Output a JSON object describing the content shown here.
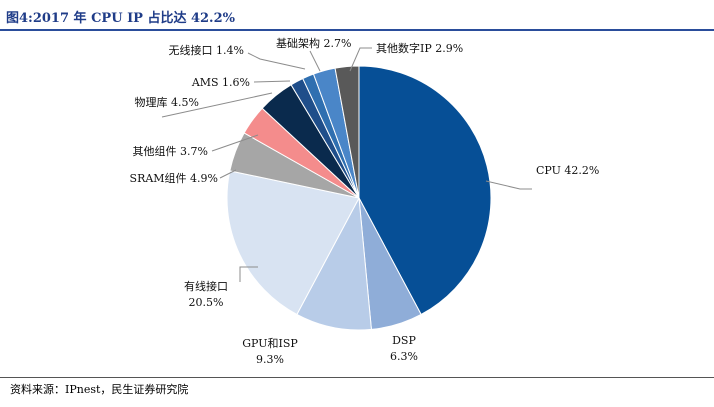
{
  "header": {
    "title": "图4:2017 年 CPU IP 占比达 42.2%"
  },
  "footer": {
    "source": "资料来源：IPnest，民生证券研究院"
  },
  "chart_data": {
    "type": "pie",
    "title": "图4:2017 年 CPU IP 占比达 42.2%",
    "slices": [
      {
        "name": "CPU",
        "value": 42.2,
        "label_lines": [
          "CPU 42.2%"
        ],
        "color": "#064f96"
      },
      {
        "name": "DSP",
        "value": 6.3,
        "label_lines": [
          "DSP",
          "6.3%"
        ],
        "color": "#8fadd8"
      },
      {
        "name": "GPU和ISP",
        "value": 9.3,
        "label_lines": [
          "GPU和ISP",
          "9.3%"
        ],
        "color": "#b8cce8"
      },
      {
        "name": "有线接口",
        "value": 20.5,
        "label_lines": [
          "有线接口",
          "20.5%"
        ],
        "color": "#d8e3f2"
      },
      {
        "name": "SRAM组件",
        "value": 4.9,
        "label_lines": [
          "SRAM组件 4.9%"
        ],
        "color": "#a6a6a6"
      },
      {
        "name": "其他组件",
        "value": 3.7,
        "label_lines": [
          "其他组件 3.7%"
        ],
        "color": "#f48c8c"
      },
      {
        "name": "物理库",
        "value": 4.5,
        "label_lines": [
          "物理库 4.5%"
        ],
        "color": "#0a2a4d"
      },
      {
        "name": "AMS",
        "value": 1.6,
        "label_lines": [
          "AMS 1.6%"
        ],
        "color": "#1f4e8a"
      },
      {
        "name": "无线接口",
        "value": 1.4,
        "label_lines": [
          "无线接口 1.4%"
        ],
        "color": "#2f6fb0"
      },
      {
        "name": "基础架构",
        "value": 2.7,
        "label_lines": [
          "基础架构 2.7%"
        ],
        "color": "#4a86c8"
      },
      {
        "name": "其他数字IP",
        "value": 2.9,
        "label_lines": [
          "其他数字IP 2.9%"
        ],
        "color": "#595959"
      }
    ],
    "start": "12 o'clock",
    "direction": "clockwise",
    "legend": "none"
  }
}
